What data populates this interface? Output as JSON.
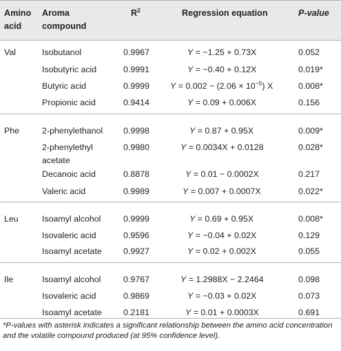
{
  "header": {
    "amino_acid": [
      "Amino",
      "acid"
    ],
    "aroma_compound": [
      "Aroma",
      "compound"
    ],
    "r2": "R",
    "r2_sup": "2",
    "regression": "Regression equation",
    "pvalue": "P-value"
  },
  "groups": [
    {
      "amino": "Val",
      "rows": [
        {
          "compound": [
            "Isobutanol"
          ],
          "r2": "0.9967",
          "eq": "= −1.25 + 0.73X",
          "p": "0.052"
        },
        {
          "compound": [
            "Isobutyric acid"
          ],
          "r2": "0.9991",
          "eq": "= −0.40 + 0.12X",
          "p": "0.019*"
        },
        {
          "compound": [
            "Butyric acid"
          ],
          "r2": "0.9999",
          "eq": "= 0.002 − (2.06 × 10",
          "eq_sup": "−5",
          "eq_tail": ") X",
          "p": "0.008*"
        },
        {
          "compound": [
            "Propionic acid"
          ],
          "r2": "0.9414",
          "eq": "= 0.09 + 0.006X",
          "p": "0.156"
        }
      ]
    },
    {
      "amino": "Phe",
      "rows": [
        {
          "compound": [
            "2-phenylethanol"
          ],
          "r2": "0.9998",
          "eq": "= 0.87 + 0.95X",
          "p": "0.009*"
        },
        {
          "compound": [
            "2-phenylethyl",
            "acetate"
          ],
          "r2": "0.9980",
          "eq": "= 0.0034X + 0.0128",
          "p": "0.028*"
        },
        {
          "compound": [
            "Decanoic acid"
          ],
          "r2": "0.8878",
          "eq": "= 0.01 − 0.0002X",
          "p": "0.217"
        },
        {
          "compound": [
            "Valeric acid"
          ],
          "r2": "0.9989",
          "eq": "= 0.007 + 0.0007X",
          "p": "0.022*"
        }
      ]
    },
    {
      "amino": "Leu",
      "rows": [
        {
          "compound": [
            "Isoamyl alcohol"
          ],
          "r2": "0.9999",
          "eq": "= 0.69 + 0.95X",
          "p": "0.008*"
        },
        {
          "compound": [
            "Isovaleric acid"
          ],
          "r2": "0.9596",
          "eq": "= −0.04 + 0.02X",
          "p": "0.129"
        },
        {
          "compound": [
            "Isoamyl acetate"
          ],
          "r2": "0.9927",
          "eq": "= 0.02 + 0.002X",
          "p": "0.055"
        }
      ]
    },
    {
      "amino": "Ile",
      "rows": [
        {
          "compound": [
            "Isoamyl alcohol"
          ],
          "r2": "0.9767",
          "eq": "= 1.2988X − 2.2464",
          "p": "0.098"
        },
        {
          "compound": [
            "Isovaleric acid"
          ],
          "r2": "0.9869",
          "eq": "= −0.03 + 0.02X",
          "p": "0.073"
        },
        {
          "compound": [
            "Isoamyl acetate"
          ],
          "r2": "0.2181",
          "eq": "= 0.01 + 0.0003X",
          "p": "0.691"
        }
      ]
    }
  ],
  "eq_var": "Y",
  "footnote": "*P-values with asterisk indicates a significant relationship between the amino acid concentration and the volatile compound produced (at 95% confidence level)."
}
